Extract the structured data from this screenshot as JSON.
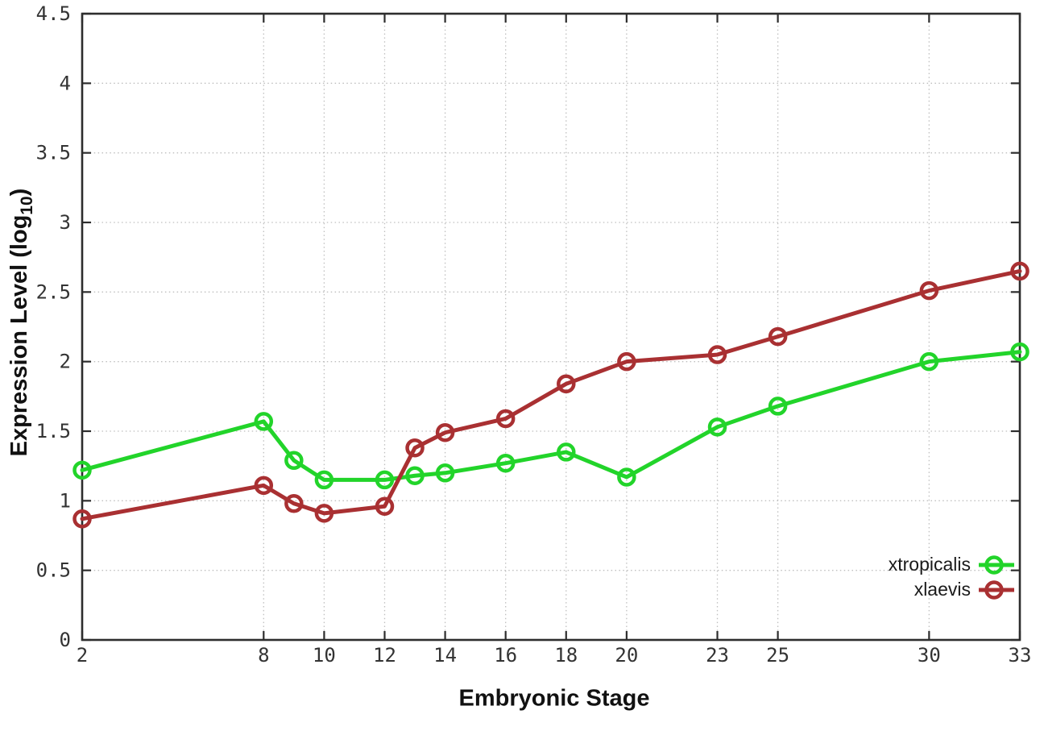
{
  "chart_data": {
    "type": "line",
    "title": "",
    "xlabel": "Embryonic Stage",
    "ylabel": "Expression Level (log10)",
    "ylabel_parts": {
      "prefix": "Expression Level (log",
      "sub": "10",
      "suffix": ")"
    },
    "x": [
      2,
      8,
      9,
      10,
      12,
      13,
      14,
      16,
      18,
      20,
      23,
      25,
      30,
      33
    ],
    "xlim": [
      2,
      33
    ],
    "ylim": [
      0,
      4.5
    ],
    "xticks": [
      2,
      8,
      10,
      12,
      14,
      16,
      18,
      20,
      23,
      25,
      30,
      33
    ],
    "xtick_labels": [
      "2",
      "8",
      "10",
      "12",
      "14",
      "16",
      "18",
      "20",
      "23",
      "25",
      "30",
      "33"
    ],
    "yticks": [
      0,
      0.5,
      1,
      1.5,
      2,
      2.5,
      3,
      3.5,
      4,
      4.5
    ],
    "ytick_labels": [
      "0",
      "0.5",
      "1",
      "1.5",
      "2",
      "2.5",
      "3",
      "3.5",
      "4",
      "4.5"
    ],
    "grid": true,
    "legend_position": "inside-bottom-right",
    "marker": "open-circle",
    "series": [
      {
        "name": "xtropicalis",
        "color": "#22d42a",
        "values": [
          1.22,
          1.57,
          1.29,
          1.15,
          1.15,
          1.18,
          1.2,
          1.27,
          1.35,
          1.17,
          1.53,
          1.68,
          2.0,
          2.07
        ]
      },
      {
        "name": "xlaevis",
        "color": "#a93032",
        "values": [
          0.87,
          1.11,
          0.98,
          0.91,
          0.96,
          1.38,
          1.49,
          1.59,
          1.84,
          2.0,
          2.05,
          2.18,
          2.51,
          2.65
        ]
      }
    ]
  }
}
